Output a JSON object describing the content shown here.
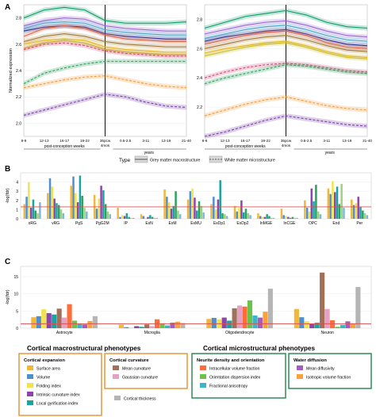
{
  "panels": {
    "a": "A",
    "b": "B",
    "c": "C"
  },
  "chart_data": [
    {
      "type": "line",
      "panel": "A-left",
      "ylabel": "Normalized expression",
      "ylim": [
        1.9,
        2.9
      ],
      "yticks": [
        "2.0",
        "2.2",
        "2.4",
        "2.6",
        "2.8"
      ],
      "x": [
        "8-9",
        "12-13",
        "16-17",
        "19-22",
        "35pcw",
        "0.5-2.5",
        "3-11",
        "13-19",
        "21-40"
      ],
      "x_marker": "35pcw",
      "x_marker_sub": "4mos",
      "xlabel_left": "post-conception weeks",
      "xlabel_right": "years",
      "series": [
        {
          "color": "#0e9a6a",
          "style": "solid",
          "values": [
            2.8,
            2.86,
            2.88,
            2.86,
            2.78,
            2.76,
            2.76,
            2.76,
            2.77
          ]
        },
        {
          "color": "#9b6ad4",
          "style": "solid",
          "values": [
            2.74,
            2.78,
            2.8,
            2.79,
            2.74,
            2.72,
            2.71,
            2.7,
            2.7
          ]
        },
        {
          "color": "#4fa3c7",
          "style": "solid",
          "values": [
            2.72,
            2.76,
            2.77,
            2.76,
            2.71,
            2.69,
            2.68,
            2.67,
            2.67
          ]
        },
        {
          "color": "#2f2f8f",
          "style": "solid",
          "values": [
            2.7,
            2.73,
            2.74,
            2.73,
            2.68,
            2.66,
            2.65,
            2.64,
            2.64
          ]
        },
        {
          "color": "#e06a4a",
          "style": "solid",
          "values": [
            2.66,
            2.72,
            2.74,
            2.72,
            2.67,
            2.64,
            2.63,
            2.62,
            2.62
          ]
        },
        {
          "color": "#a07b3c",
          "style": "solid",
          "values": [
            2.62,
            2.66,
            2.68,
            2.66,
            2.62,
            2.6,
            2.59,
            2.58,
            2.58
          ]
        },
        {
          "color": "#e5b52a",
          "style": "solid",
          "values": [
            2.6,
            2.63,
            2.64,
            2.63,
            2.58,
            2.56,
            2.55,
            2.54,
            2.54
          ]
        },
        {
          "color": "#c9c02e",
          "style": "solid",
          "values": [
            2.57,
            2.61,
            2.63,
            2.61,
            2.56,
            2.54,
            2.53,
            2.52,
            2.52
          ]
        },
        {
          "color": "#d24a7a",
          "style": "dashed",
          "values": [
            2.56,
            2.6,
            2.61,
            2.59,
            2.55,
            2.53,
            2.52,
            2.51,
            2.51
          ]
        },
        {
          "color": "#2d9e5b",
          "style": "dashed",
          "values": [
            2.3,
            2.38,
            2.42,
            2.45,
            2.47,
            2.47,
            2.47,
            2.47,
            2.47
          ]
        },
        {
          "color": "#f39a3d",
          "style": "dashed",
          "values": [
            2.27,
            2.3,
            2.33,
            2.35,
            2.36,
            2.33,
            2.3,
            2.28,
            2.27
          ]
        },
        {
          "color": "#7b3fa6",
          "style": "dashed",
          "values": [
            2.06,
            2.1,
            2.14,
            2.18,
            2.22,
            2.2,
            2.16,
            2.13,
            2.12
          ]
        }
      ]
    },
    {
      "type": "line",
      "panel": "A-right",
      "ylim": [
        2.0,
        2.9
      ],
      "yticks": [
        "2.2",
        "2.4",
        "2.6",
        "2.8"
      ],
      "x": [
        "8-9",
        "12-13",
        "16-17",
        "19-22",
        "35pcw",
        "0.5-2.5",
        "3-11",
        "13-19",
        "21-40"
      ],
      "x_marker": "35pcw",
      "x_marker_sub": "4mos",
      "xlabel_left": "post-conception weeks",
      "xlabel_right": "years",
      "series": [
        {
          "color": "#0e9a6a",
          "style": "solid",
          "values": [
            2.74,
            2.78,
            2.82,
            2.84,
            2.86,
            2.83,
            2.78,
            2.75,
            2.74
          ]
        },
        {
          "color": "#9b6ad4",
          "style": "solid",
          "values": [
            2.7,
            2.73,
            2.76,
            2.78,
            2.79,
            2.76,
            2.72,
            2.69,
            2.68
          ]
        },
        {
          "color": "#4fa3c7",
          "style": "solid",
          "values": [
            2.67,
            2.7,
            2.73,
            2.75,
            2.76,
            2.73,
            2.69,
            2.66,
            2.65
          ]
        },
        {
          "color": "#2f2f8f",
          "style": "solid",
          "values": [
            2.65,
            2.68,
            2.7,
            2.72,
            2.73,
            2.7,
            2.66,
            2.63,
            2.62
          ]
        },
        {
          "color": "#e06a4a",
          "style": "solid",
          "values": [
            2.63,
            2.66,
            2.69,
            2.71,
            2.72,
            2.69,
            2.64,
            2.61,
            2.6
          ]
        },
        {
          "color": "#a07b3c",
          "style": "solid",
          "values": [
            2.6,
            2.63,
            2.66,
            2.68,
            2.69,
            2.66,
            2.62,
            2.59,
            2.58
          ]
        },
        {
          "color": "#e5b52a",
          "style": "solid",
          "values": [
            2.57,
            2.6,
            2.62,
            2.64,
            2.65,
            2.62,
            2.58,
            2.55,
            2.54
          ]
        },
        {
          "color": "#c9c02e",
          "style": "solid",
          "values": [
            2.55,
            2.58,
            2.61,
            2.63,
            2.64,
            2.61,
            2.57,
            2.54,
            2.53
          ]
        },
        {
          "color": "#d24a7a",
          "style": "dashed",
          "values": [
            2.4,
            2.44,
            2.47,
            2.49,
            2.5,
            2.49,
            2.47,
            2.45,
            2.44
          ]
        },
        {
          "color": "#2d9e5b",
          "style": "dashed",
          "values": [
            2.36,
            2.4,
            2.43,
            2.46,
            2.49,
            2.48,
            2.46,
            2.44,
            2.43
          ]
        },
        {
          "color": "#f39a3d",
          "style": "dashed",
          "values": [
            2.14,
            2.18,
            2.22,
            2.25,
            2.27,
            2.24,
            2.21,
            2.19,
            2.18
          ]
        },
        {
          "color": "#7b3fa6",
          "style": "dashed",
          "values": [
            2.0,
            2.03,
            2.07,
            2.11,
            2.14,
            2.12,
            2.1,
            2.08,
            2.07
          ]
        }
      ]
    },
    {
      "type": "bar",
      "panel": "B",
      "ylabel": "-log(fdr)",
      "ylim": [
        0,
        5
      ],
      "yticks": [
        "0",
        "1",
        "2",
        "3",
        "4"
      ],
      "threshold": 1.3,
      "threshold_color": "#d9534f",
      "categories": [
        "oRG",
        "vRG",
        "PgS",
        "PgG2M",
        "IP",
        "ExN",
        "ExM",
        "ExMU",
        "ExDp1",
        "ExDp2",
        "InMGE",
        "InCGE",
        "OPC",
        "End",
        "Per"
      ],
      "series_colors": [
        "#f0b73a",
        "#4e8fd0",
        "#f2e34a",
        "#8e44ad",
        "#1aa3a3",
        "#2ca25f",
        "#9fd17e",
        "#7fb8d6",
        "#d97b49",
        "#e6a0c4",
        "#b5b5b5",
        "#f28c28",
        "#c87137",
        "#e85a4f",
        "#c94f8c",
        "#6fcf97"
      ],
      "values": [
        [
          1.6,
          2.8,
          3.6,
          2.6,
          1.2,
          0.5,
          3.2,
          2.1,
          1.6,
          1.4,
          0.6,
          1.1,
          2.0,
          3.3,
          2.1
        ],
        [
          2.4,
          4.4,
          4.6,
          1.1,
          0.2,
          0.3,
          2.4,
          3.0,
          2.4,
          0.8,
          0.3,
          0.4,
          1.2,
          2.7,
          1.5
        ],
        [
          4.0,
          3.5,
          2.8,
          2.2,
          0.4,
          0.1,
          1.8,
          3.3,
          1.0,
          1.2,
          0.2,
          0.3,
          0.8,
          4.1,
          1.7
        ],
        [
          1.2,
          2.2,
          1.8,
          3.6,
          0.3,
          0.2,
          1.1,
          2.3,
          2.1,
          2.0,
          0.2,
          0.2,
          3.3,
          2.9,
          2.4
        ],
        [
          2.1,
          1.7,
          4.7,
          3.1,
          0.6,
          0.4,
          1.4,
          0.9,
          4.2,
          0.7,
          0.5,
          0.1,
          1.9,
          3.5,
          1.3
        ],
        [
          0.9,
          1.5,
          2.5,
          1.6,
          0.2,
          0.2,
          3.0,
          1.9,
          0.6,
          1.1,
          0.3,
          0.2,
          3.7,
          1.6,
          0.9
        ],
        [
          0.6,
          1.0,
          1.2,
          0.8,
          0.1,
          0.1,
          0.9,
          1.4,
          0.5,
          0.6,
          0.1,
          0.1,
          0.8,
          3.8,
          0.6
        ],
        [
          1.8,
          0.6,
          0.8,
          0.5,
          0.1,
          0.1,
          0.5,
          0.7,
          0.3,
          0.4,
          0.1,
          0.1,
          0.5,
          1.2,
          0.4
        ]
      ]
    },
    {
      "type": "bar",
      "panel": "C",
      "ylabel": "-log(fdr)",
      "ylim": [
        0,
        18
      ],
      "yticks": [
        "0",
        "5",
        "10",
        "15"
      ],
      "threshold": 1.3,
      "threshold_color": "#d9534f",
      "categories": [
        "Astrocyte",
        "Microglia",
        "Oligodendrocyte",
        "Neuron"
      ],
      "series": [
        {
          "name": "Surface area",
          "color": "#f0b73a",
          "values": [
            3.2,
            1.0,
            2.7,
            5.6
          ]
        },
        {
          "name": "Volume",
          "color": "#4e8fd0",
          "values": [
            3.5,
            0.3,
            3.0,
            3.2
          ]
        },
        {
          "name": "Folding index",
          "color": "#f2e34a",
          "values": [
            5.5,
            0.2,
            2.6,
            2.0
          ]
        },
        {
          "name": "Intrinsic curvature index",
          "color": "#8e44ad",
          "values": [
            4.4,
            0.6,
            3.1,
            1.2
          ]
        },
        {
          "name": "Local gyrification index",
          "color": "#1aa3a3",
          "values": [
            4.0,
            0.4,
            2.2,
            1.6
          ]
        },
        {
          "name": "Mean curvature",
          "color": "#a0705a",
          "values": [
            5.7,
            1.1,
            5.8,
            16.2
          ]
        },
        {
          "name": "Gaussian curvature",
          "color": "#e6a0c4",
          "values": [
            3.1,
            0.6,
            6.6,
            5.6
          ]
        },
        {
          "name": "Intracellular volume fraction",
          "color": "#ff6e3a",
          "values": [
            7.0,
            2.6,
            6.3,
            2.3
          ]
        },
        {
          "name": "Orientation dispersion index",
          "color": "#6cc24a",
          "values": [
            2.2,
            1.4,
            8.1,
            0.4
          ]
        },
        {
          "name": "Fractional anisotropy",
          "color": "#38b7c9",
          "values": [
            1.3,
            0.8,
            3.7,
            1.0
          ]
        },
        {
          "name": "Mean diffusivity",
          "color": "#a55bbf",
          "values": [
            1.1,
            1.6,
            3.1,
            2.0
          ]
        },
        {
          "name": "Isotropic volume fraction",
          "color": "#f9a23a",
          "values": [
            2.1,
            1.9,
            4.8,
            1.4
          ]
        },
        {
          "name": "Cortical thickness",
          "color": "#b5b5b5",
          "values": [
            3.5,
            1.5,
            11.5,
            12.0
          ]
        }
      ]
    }
  ],
  "legend_a": {
    "title": "Type",
    "items": [
      {
        "label": "Grey matter macrostructure",
        "style": "solid"
      },
      {
        "label": "White matter microstructure",
        "style": "dashed"
      }
    ]
  },
  "legend_c": {
    "macro_title": "Cortical macrostructural phenotypes",
    "micro_title": "Cortical microstructural phenotypes",
    "box_border_macro": "#e8963a",
    "box_border_micro": "#2e8b57",
    "groups": [
      {
        "title": "Cortical expansion",
        "items": [
          {
            "label": "Surface area",
            "color": "#f0b73a"
          },
          {
            "label": "Volume",
            "color": "#4e8fd0"
          },
          {
            "label": "Folding index",
            "color": "#f2e34a"
          },
          {
            "label": "Intrinsic curvature index",
            "color": "#8e44ad"
          },
          {
            "label": "Local gyrification index",
            "color": "#1aa3a3"
          }
        ]
      },
      {
        "title": "Cortical curvature",
        "items": [
          {
            "label": "Mean curvature",
            "color": "#a0705a"
          },
          {
            "label": "Gaussian curvature",
            "color": "#e6a0c4"
          }
        ]
      },
      {
        "title": "Neurite density and orientation",
        "items": [
          {
            "label": "Intracellular volume fraction",
            "color": "#ff6e3a"
          },
          {
            "label": "Orientation dispersion index",
            "color": "#6cc24a"
          },
          {
            "label": "Fractional anisotropy",
            "color": "#38b7c9"
          }
        ]
      },
      {
        "title": "Water diffusion",
        "items": [
          {
            "label": "Mean diffusivity",
            "color": "#a55bbf"
          },
          {
            "label": "Isotropic volume fraction",
            "color": "#f9a23a"
          }
        ]
      }
    ],
    "standalone": {
      "label": "Cortical thickness",
      "color": "#b5b5b5"
    }
  }
}
